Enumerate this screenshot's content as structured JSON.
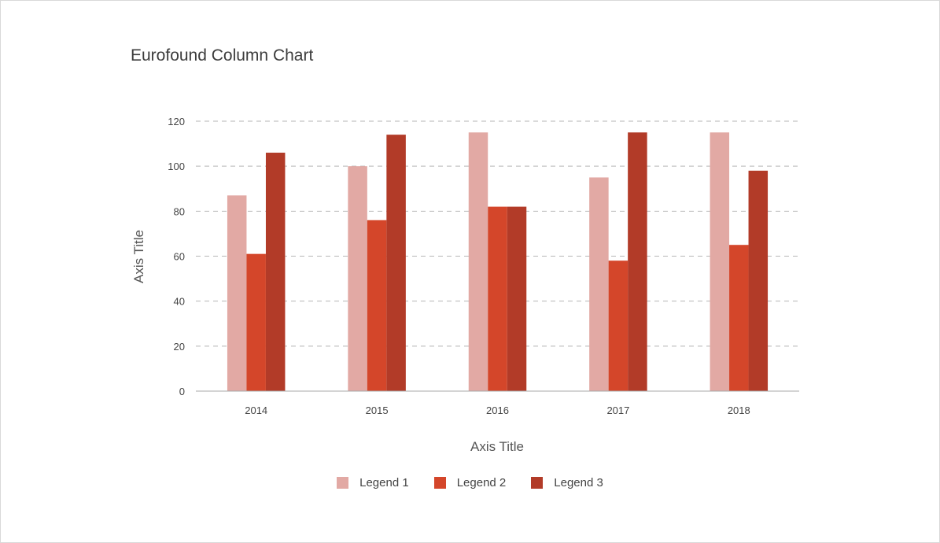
{
  "chart_data": {
    "type": "bar",
    "title": "Eurofound Column Chart",
    "xlabel": "Axis Title",
    "ylabel": "Axis Title",
    "categories": [
      "2014",
      "2015",
      "2016",
      "2017",
      "2018"
    ],
    "ylim": [
      0,
      120
    ],
    "yticks": [
      0,
      20,
      40,
      60,
      80,
      100,
      120
    ],
    "grid": true,
    "legend_position": "bottom",
    "series": [
      {
        "name": "Legend 1",
        "values": [
          87,
          100,
          115,
          95,
          115
        ],
        "color": "#e2a9a4"
      },
      {
        "name": "Legend 2",
        "values": [
          61,
          76,
          82,
          58,
          65
        ],
        "color": "#d4462a"
      },
      {
        "name": "Legend 3",
        "values": [
          106,
          114,
          82,
          115,
          98
        ],
        "color": "#b23b28"
      }
    ]
  }
}
